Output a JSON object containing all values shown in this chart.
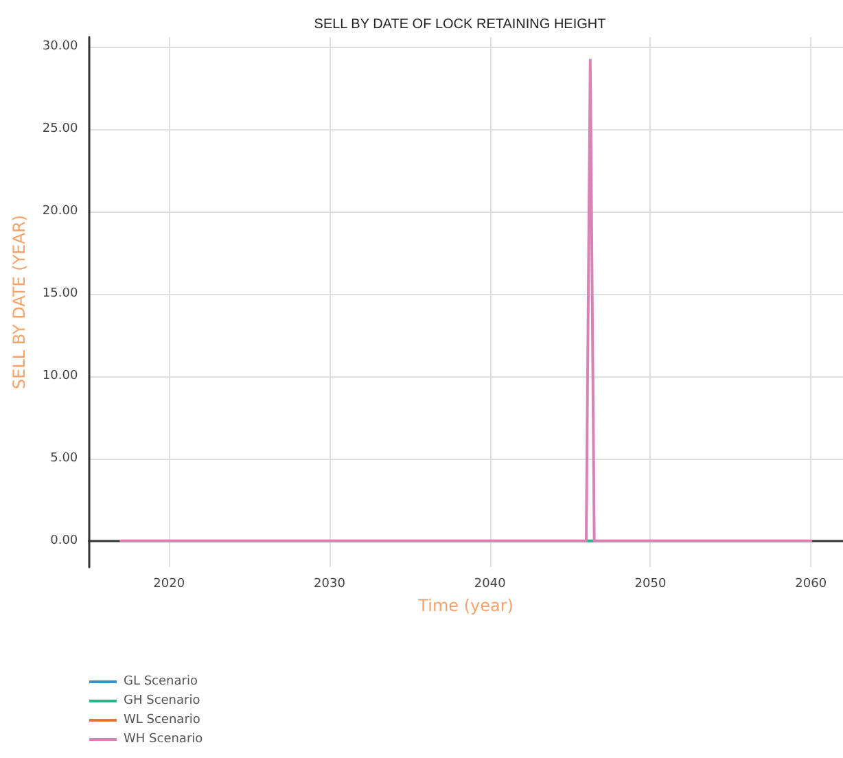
{
  "chart_data": {
    "type": "line",
    "title": "SELL BY DATE OF LOCK RETAINING HEIGHT",
    "xlabel": "Time (year)",
    "ylabel": "SELL BY DATE (YEAR)",
    "x": [
      2017,
      2046,
      2046.25,
      2046.5,
      2060
    ],
    "series": [
      {
        "name": "GL Scenario",
        "color": "#3b8fcb",
        "values": [
          null,
          null,
          null,
          null,
          null
        ]
      },
      {
        "name": "GH Scenario",
        "color": "#2bb487",
        "x": [
          2046.1,
          2046.4
        ],
        "values": [
          0,
          0
        ]
      },
      {
        "name": "WL Scenario",
        "color": "#e0743a",
        "values": [
          null,
          null,
          null,
          null,
          null
        ]
      },
      {
        "name": "WH Scenario",
        "color": "#d882b6",
        "values": [
          0,
          0,
          29.2,
          0,
          0
        ]
      }
    ],
    "xlim": [
      2015,
      2062
    ],
    "xticks": [
      2020,
      2030,
      2040,
      2050,
      2060
    ],
    "ylim": [
      -1.6,
      30.6
    ],
    "yticks": [
      {
        "value": 0,
        "label": "0.00"
      },
      {
        "value": 5,
        "label": "5.00"
      },
      {
        "value": 10,
        "label": "10.00"
      },
      {
        "value": 15,
        "label": "15.00"
      },
      {
        "value": 20,
        "label": "20.00"
      },
      {
        "value": 25,
        "label": "25.00"
      },
      {
        "value": 30,
        "label": "30.00"
      }
    ],
    "grid": true,
    "legend": "bottom left",
    "marker": "none",
    "line_style": "solid"
  }
}
